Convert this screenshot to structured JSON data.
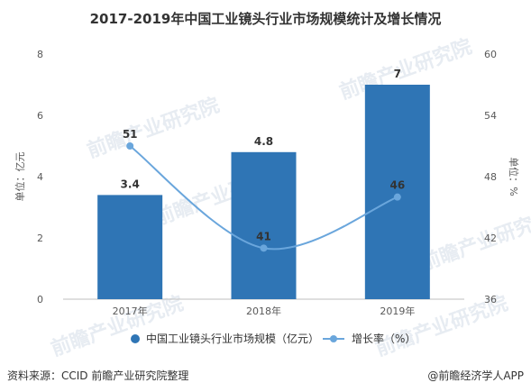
{
  "title": "2017-2019年中国工业镜头行业市场规模统计及增长情况",
  "source": "资料来源：CCID 前瞻产业研究院整理",
  "brand": "@前瞻经济学人APP",
  "watermark": "前瞻产业研究院",
  "colors": {
    "bar": "#2f75b5",
    "line": "#6aa6dc",
    "axis": "#bfbfbf",
    "text": "#595959"
  },
  "chart_data": {
    "type": "bar",
    "categories": [
      "2017年",
      "2018年",
      "2019年"
    ],
    "series": [
      {
        "name": "中国工业镜头行业市场规模（亿元）",
        "type": "bar",
        "axis": "left",
        "values": [
          3.4,
          4.8,
          7
        ],
        "labels": [
          "3.4",
          "4.8",
          "7"
        ]
      },
      {
        "name": "增长率（%）",
        "type": "line",
        "axis": "right",
        "values": [
          51,
          41,
          46
        ],
        "labels": [
          "51",
          "41",
          "46"
        ]
      }
    ],
    "y_left": {
      "label": "单位：亿元",
      "ticks": [
        "0",
        "2",
        "4",
        "6",
        "8"
      ],
      "ylim": [
        0,
        8
      ]
    },
    "y_right": {
      "label": "单位：%",
      "ticks": [
        "36",
        "42",
        "48",
        "54",
        "60"
      ],
      "ylim": [
        36,
        60
      ]
    },
    "legend": "bottom"
  }
}
